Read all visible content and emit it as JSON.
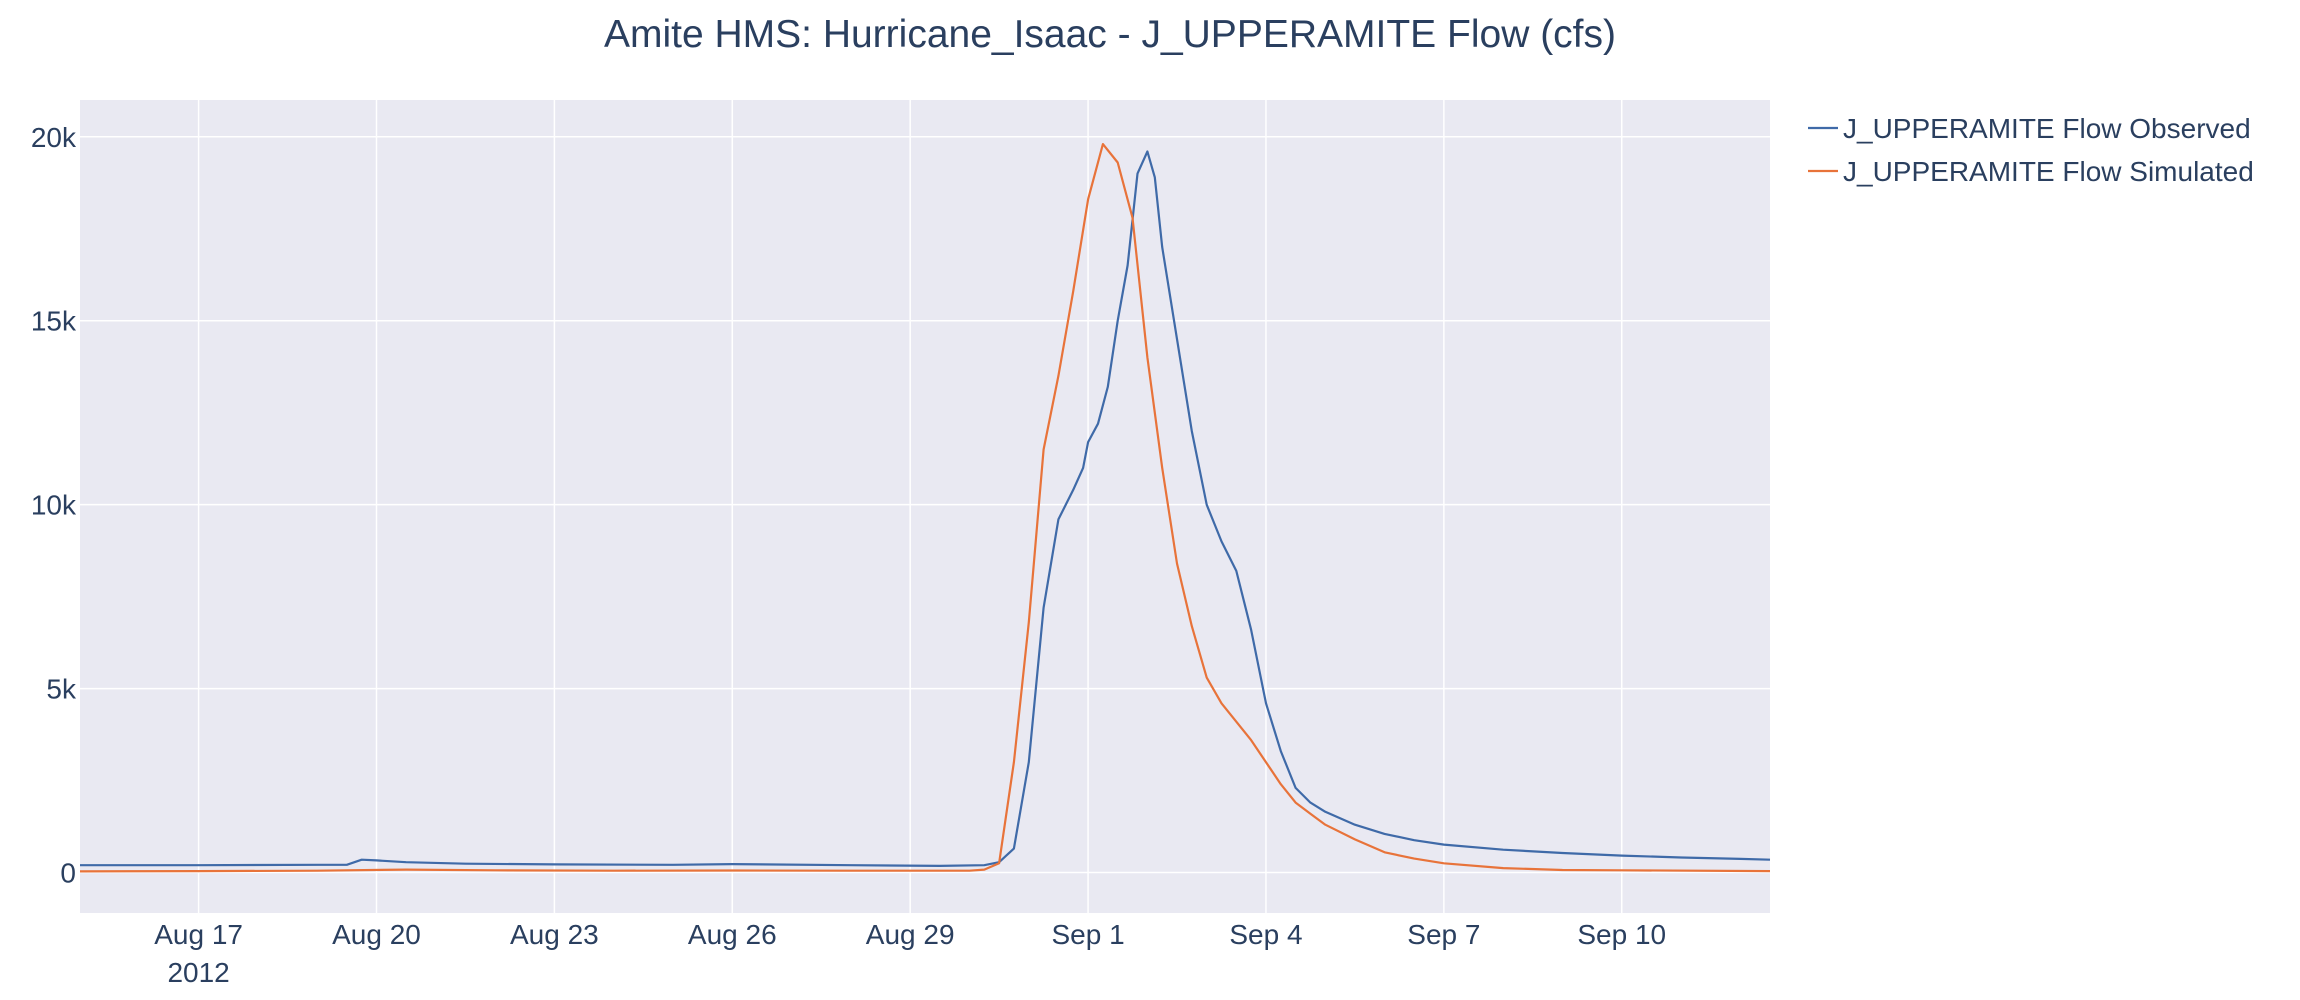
{
  "chart_data": {
    "type": "line",
    "title": "Amite HMS: Hurricane_Isaac - J_UPPERAMITE Flow (cfs)",
    "xlabel": "",
    "ylabel": "",
    "x_range": [
      "2012-08-15T00:00",
      "2012-09-12T12:00"
    ],
    "ylim": [
      -1100,
      21000
    ],
    "y_ticks": [
      {
        "value": 0,
        "label": "0"
      },
      {
        "value": 5000,
        "label": "5k"
      },
      {
        "value": 10000,
        "label": "10k"
      },
      {
        "value": 15000,
        "label": "15k"
      },
      {
        "value": 20000,
        "label": "20k"
      }
    ],
    "x_ticks": [
      {
        "date": "2012-08-17",
        "label": "Aug 17",
        "sublabel": "2012"
      },
      {
        "date": "2012-08-20",
        "label": "Aug 20",
        "sublabel": ""
      },
      {
        "date": "2012-08-23",
        "label": "Aug 23",
        "sublabel": ""
      },
      {
        "date": "2012-08-26",
        "label": "Aug 26",
        "sublabel": ""
      },
      {
        "date": "2012-08-29",
        "label": "Aug 29",
        "sublabel": ""
      },
      {
        "date": "2012-09-01",
        "label": "Sep 1",
        "sublabel": ""
      },
      {
        "date": "2012-09-04",
        "label": "Sep 4",
        "sublabel": ""
      },
      {
        "date": "2012-09-07",
        "label": "Sep 7",
        "sublabel": ""
      },
      {
        "date": "2012-09-10",
        "label": "Sep 10",
        "sublabel": ""
      }
    ],
    "grid": true,
    "legend_position": "top-right-outside",
    "series": [
      {
        "name": "J_UPPERAMITE Flow Observed",
        "color": "#3f6aa8",
        "points": [
          [
            "2012-08-15T00:00",
            200
          ],
          [
            "2012-08-17T00:00",
            200
          ],
          [
            "2012-08-19T00:00",
            210
          ],
          [
            "2012-08-19T12:00",
            210
          ],
          [
            "2012-08-19T18:00",
            350
          ],
          [
            "2012-08-20T00:00",
            330
          ],
          [
            "2012-08-20T12:00",
            280
          ],
          [
            "2012-08-21T12:00",
            240
          ],
          [
            "2012-08-23T00:00",
            220
          ],
          [
            "2012-08-25T00:00",
            210
          ],
          [
            "2012-08-26T00:00",
            230
          ],
          [
            "2012-08-28T00:00",
            200
          ],
          [
            "2012-08-29T12:00",
            180
          ],
          [
            "2012-08-30T06:00",
            200
          ],
          [
            "2012-08-30T12:00",
            280
          ],
          [
            "2012-08-30T18:00",
            650
          ],
          [
            "2012-08-31T00:00",
            3000
          ],
          [
            "2012-08-31T06:00",
            7200
          ],
          [
            "2012-08-31T12:00",
            9600
          ],
          [
            "2012-08-31T18:00",
            10400
          ],
          [
            "2012-08-31T22:00",
            11000
          ],
          [
            "2012-09-01T00:00",
            11700
          ],
          [
            "2012-09-01T04:00",
            12200
          ],
          [
            "2012-09-01T08:00",
            13200
          ],
          [
            "2012-09-01T12:00",
            15000
          ],
          [
            "2012-09-01T16:00",
            16500
          ],
          [
            "2012-09-01T20:00",
            19000
          ],
          [
            "2012-09-02T00:00",
            19600
          ],
          [
            "2012-09-02T03:00",
            18900
          ],
          [
            "2012-09-02T06:00",
            17000
          ],
          [
            "2012-09-02T12:00",
            14500
          ],
          [
            "2012-09-02T18:00",
            12000
          ],
          [
            "2012-09-03T00:00",
            10000
          ],
          [
            "2012-09-03T06:00",
            9000
          ],
          [
            "2012-09-03T12:00",
            8200
          ],
          [
            "2012-09-03T18:00",
            6600
          ],
          [
            "2012-09-04T00:00",
            4600
          ],
          [
            "2012-09-04T06:00",
            3300
          ],
          [
            "2012-09-04T12:00",
            2300
          ],
          [
            "2012-09-04T18:00",
            1900
          ],
          [
            "2012-09-05T00:00",
            1650
          ],
          [
            "2012-09-05T12:00",
            1300
          ],
          [
            "2012-09-06T00:00",
            1050
          ],
          [
            "2012-09-06T12:00",
            880
          ],
          [
            "2012-09-07T00:00",
            760
          ],
          [
            "2012-09-08T00:00",
            620
          ],
          [
            "2012-09-09T00:00",
            530
          ],
          [
            "2012-09-10T00:00",
            460
          ],
          [
            "2012-09-11T00:00",
            410
          ],
          [
            "2012-09-12T00:00",
            370
          ],
          [
            "2012-09-12T12:00",
            350
          ]
        ]
      },
      {
        "name": "J_UPPERAMITE Flow Simulated",
        "color": "#e8733a",
        "points": [
          [
            "2012-08-15T00:00",
            30
          ],
          [
            "2012-08-17T00:00",
            40
          ],
          [
            "2012-08-19T00:00",
            50
          ],
          [
            "2012-08-20T12:00",
            80
          ],
          [
            "2012-08-22T00:00",
            60
          ],
          [
            "2012-08-24T00:00",
            50
          ],
          [
            "2012-08-26T00:00",
            55
          ],
          [
            "2012-08-28T00:00",
            50
          ],
          [
            "2012-08-30T00:00",
            50
          ],
          [
            "2012-08-30T06:00",
            80
          ],
          [
            "2012-08-30T12:00",
            250
          ],
          [
            "2012-08-30T18:00",
            3000
          ],
          [
            "2012-08-31T00:00",
            6800
          ],
          [
            "2012-08-31T06:00",
            11500
          ],
          [
            "2012-08-31T12:00",
            13500
          ],
          [
            "2012-08-31T18:00",
            15800
          ],
          [
            "2012-09-01T00:00",
            18300
          ],
          [
            "2012-09-01T06:00",
            19800
          ],
          [
            "2012-09-01T12:00",
            19300
          ],
          [
            "2012-09-01T18:00",
            17800
          ],
          [
            "2012-09-02T00:00",
            14000
          ],
          [
            "2012-09-02T06:00",
            11000
          ],
          [
            "2012-09-02T12:00",
            8400
          ],
          [
            "2012-09-02T18:00",
            6700
          ],
          [
            "2012-09-03T00:00",
            5300
          ],
          [
            "2012-09-03T06:00",
            4600
          ],
          [
            "2012-09-03T12:00",
            4100
          ],
          [
            "2012-09-03T18:00",
            3600
          ],
          [
            "2012-09-04T00:00",
            3000
          ],
          [
            "2012-09-04T06:00",
            2400
          ],
          [
            "2012-09-04T12:00",
            1900
          ],
          [
            "2012-09-04T18:00",
            1600
          ],
          [
            "2012-09-05T00:00",
            1300
          ],
          [
            "2012-09-05T12:00",
            900
          ],
          [
            "2012-09-06T00:00",
            550
          ],
          [
            "2012-09-06T12:00",
            380
          ],
          [
            "2012-09-07T00:00",
            250
          ],
          [
            "2012-09-08T00:00",
            120
          ],
          [
            "2012-09-09T00:00",
            70
          ],
          [
            "2012-09-10T00:00",
            60
          ],
          [
            "2012-09-12T12:00",
            40
          ]
        ]
      }
    ]
  }
}
